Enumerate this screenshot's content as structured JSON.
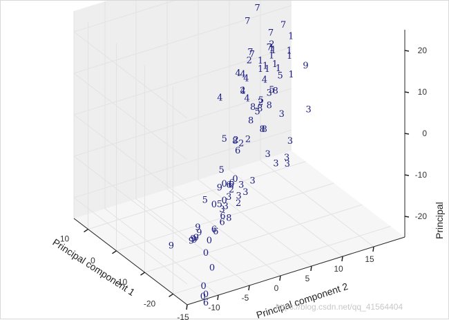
{
  "chart_data": {
    "type": "scatter",
    "projection": "3d",
    "marker": "digit-text",
    "grid": true,
    "xlabel": "Principal component 1",
    "ylabel": "Principal component 2",
    "zlabel": "Principal",
    "xticks": [
      "-20",
      "-10",
      "0",
      "10"
    ],
    "yticks": [
      "-15",
      "-10",
      "-5",
      "0",
      "5",
      "10",
      "15"
    ],
    "zticks": [
      "20",
      "10",
      "0",
      "-10",
      "-20"
    ],
    "xlim": [
      -25,
      15
    ],
    "ylim": [
      -15,
      20
    ],
    "zlim": [
      -25,
      25
    ],
    "colors": {
      "digits": "#1a1a80",
      "pane": "#f2f2f2",
      "grid": "#e2e2e2"
    },
    "points": [
      {
        "label": "7",
        "x": 8.5,
        "y": 15.5,
        "z": 22
      },
      {
        "label": "7",
        "x": 4,
        "y": 9.5,
        "z": 20
      },
      {
        "label": "7",
        "x": 7.5,
        "y": 15.5,
        "z": 18
      },
      {
        "label": "7",
        "x": 2,
        "y": 7,
        "z": 19
      },
      {
        "label": "7",
        "x": 8,
        "y": 13.5,
        "z": 10
      },
      {
        "label": "7",
        "x": 8,
        "y": 15.5,
        "z": 11
      },
      {
        "label": "7",
        "x": 2,
        "y": 10.5,
        "z": 11
      },
      {
        "label": "7",
        "x": 1,
        "y": 7,
        "z": 12
      },
      {
        "label": "7",
        "x": 1.5,
        "y": 7.5,
        "z": 11
      },
      {
        "label": "4",
        "x": -21,
        "y": -5,
        "z": 24
      },
      {
        "label": "4",
        "x": -20.5,
        "y": -4,
        "z": 23
      },
      {
        "label": "4",
        "x": -19.5,
        "y": -3,
        "z": 21
      },
      {
        "label": "4",
        "x": -24.5,
        "y": -9.5,
        "z": 22
      },
      {
        "label": "4",
        "x": -22,
        "y": -4,
        "z": 18
      },
      {
        "label": "4",
        "x": -20.5,
        "y": -4,
        "z": 19
      },
      {
        "label": "4",
        "x": -15,
        "y": 2,
        "z": 16
      },
      {
        "label": "1",
        "x": 7.5,
        "y": 16.5,
        "z": 8
      },
      {
        "label": "1",
        "x": 7,
        "y": 16,
        "z": 5
      },
      {
        "label": "1",
        "x": 4.5,
        "y": 12,
        "z": 7
      },
      {
        "label": "1",
        "x": 5.5,
        "y": 12.5,
        "z": 8
      },
      {
        "label": "1",
        "x": 6,
        "y": 13,
        "z": 7
      },
      {
        "label": "1",
        "x": 4,
        "y": 10,
        "z": 5
      },
      {
        "label": "1",
        "x": 4.5,
        "y": 11,
        "z": 5
      },
      {
        "label": "1",
        "x": 5.5,
        "y": 13,
        "z": 4
      },
      {
        "label": "1",
        "x": 8,
        "y": 16.5,
        "z": 3
      },
      {
        "label": "1",
        "x": 6.5,
        "y": 14,
        "z": 2
      },
      {
        "label": "1",
        "x": 6,
        "y": 12,
        "z": 3
      },
      {
        "label": "1",
        "x": 8.5,
        "y": 17,
        "z": -2
      },
      {
        "label": "1",
        "x": 4,
        "y": 10,
        "z": 7
      },
      {
        "label": "2",
        "x": 5.5,
        "y": 12.5,
        "z": 9
      },
      {
        "label": "2",
        "x": 2.5,
        "y": 7.5,
        "z": 9
      },
      {
        "label": "2",
        "x": 1.5,
        "y": 6,
        "z": 3
      },
      {
        "label": "2",
        "x": 4,
        "y": 10,
        "z": -3
      },
      {
        "label": "2",
        "x": 2,
        "y": 6,
        "z": -10
      },
      {
        "label": "2",
        "x": -0.5,
        "y": 4,
        "z": -7
      },
      {
        "label": "2",
        "x": 3,
        "y": 6,
        "z": -25
      },
      {
        "label": "2",
        "x": 0,
        "y": 3.5,
        "z": -19
      },
      {
        "label": "2",
        "x": 9.5,
        "y": 10.5,
        "z": -15
      },
      {
        "label": "8",
        "x": 2,
        "y": 9,
        "z": -3
      },
      {
        "label": "8",
        "x": 4.5,
        "y": 9,
        "z": -4
      },
      {
        "label": "8",
        "x": 3,
        "y": 8,
        "z": -6
      },
      {
        "label": "8",
        "x": 4.5,
        "y": 10.5,
        "z": -10
      },
      {
        "label": "8",
        "x": 7,
        "y": 12,
        "z": -12
      },
      {
        "label": "8",
        "x": 7.5,
        "y": 13,
        "z": -7
      },
      {
        "label": "8",
        "x": 2,
        "y": 5,
        "z": -9
      },
      {
        "label": "8",
        "x": -9,
        "y": -1,
        "z": -19
      },
      {
        "label": "8",
        "x": 7.5,
        "y": 14,
        "z": -4
      },
      {
        "label": "5",
        "x": -3,
        "y": 1,
        "z": -4
      },
      {
        "label": "5",
        "x": 4,
        "y": 9.5,
        "z": -5
      },
      {
        "label": "5",
        "x": 6,
        "y": 11,
        "z": -4
      },
      {
        "label": "5",
        "x": 5.5,
        "y": 12.5,
        "z": -2
      },
      {
        "label": "5",
        "x": 8,
        "y": 15,
        "z": -1
      },
      {
        "label": "5",
        "x": -2,
        "y": 1,
        "z": -12
      },
      {
        "label": "5",
        "x": -9,
        "y": -2.5,
        "z": -15
      },
      {
        "label": "5",
        "x": -22.5,
        "y": -11,
        "z": -3
      },
      {
        "label": "3",
        "x": 7.5,
        "y": 13,
        "z": -4
      },
      {
        "label": "3",
        "x": 7.5,
        "y": 15,
        "z": -10
      },
      {
        "label": "3",
        "x": 9,
        "y": 20,
        "z": -12
      },
      {
        "label": "3",
        "x": 10,
        "y": 17.5,
        "z": -19
      },
      {
        "label": "3",
        "x": 8,
        "y": 13,
        "z": -19
      },
      {
        "label": "3",
        "x": 9,
        "y": 16.5,
        "z": -22
      },
      {
        "label": "3",
        "x": 9.5,
        "y": 15,
        "z": -23
      },
      {
        "label": "3",
        "x": 11,
        "y": 17.5,
        "z": -25
      },
      {
        "label": "3",
        "x": 2,
        "y": 6,
        "z": -20
      },
      {
        "label": "3",
        "x": 2,
        "y": 4,
        "z": -22
      },
      {
        "label": "3",
        "x": 0,
        "y": 2,
        "z": -23
      },
      {
        "label": "3",
        "x": 2,
        "y": 3.5,
        "z": -24
      },
      {
        "label": "3",
        "x": 4,
        "y": 6.5,
        "z": -24
      },
      {
        "label": "3",
        "x": 6,
        "y": 8.5,
        "z": -25
      },
      {
        "label": "3",
        "x": 9,
        "y": 11,
        "z": -25
      },
      {
        "label": "9",
        "x": 10,
        "y": 20,
        "z": -2
      },
      {
        "label": "9",
        "x": -9,
        "y": -2.5,
        "z": -11
      },
      {
        "label": "9",
        "x": -3.5,
        "y": -3.5,
        "z": -23
      },
      {
        "label": "9",
        "x": -4,
        "y": -3.5,
        "z": -24
      },
      {
        "label": "9",
        "x": -4,
        "y": -4,
        "z": -25
      },
      {
        "label": "9",
        "x": -4.5,
        "y": -4.5,
        "z": -25
      },
      {
        "label": "9",
        "x": -4.5,
        "y": -5,
        "z": -25
      },
      {
        "label": "9",
        "x": -4,
        "y": -4.5,
        "z": -25
      },
      {
        "label": "9",
        "x": -4,
        "y": -8,
        "z": -25
      },
      {
        "label": "6",
        "x": -20,
        "y": -6,
        "z": -3
      },
      {
        "label": "6",
        "x": -23.5,
        "y": -10,
        "z": -10
      },
      {
        "label": "6",
        "x": -23,
        "y": -9.5,
        "z": -11
      },
      {
        "label": "6",
        "x": -22,
        "y": -8,
        "z": -10
      },
      {
        "label": "6",
        "x": -20,
        "y": -7,
        "z": -10
      },
      {
        "label": "6",
        "x": -12,
        "y": -2,
        "z": -9
      },
      {
        "label": "6",
        "x": -10,
        "y": -1,
        "z": -10
      },
      {
        "label": "6",
        "x": -11,
        "y": -0.5,
        "z": -2
      },
      {
        "label": "6",
        "x": -25,
        "y": -12,
        "z": -26
      },
      {
        "label": "0",
        "x": -20.5,
        "y": -7,
        "z": -2
      },
      {
        "label": "0",
        "x": -20,
        "y": -5,
        "z": -2
      },
      {
        "label": "0",
        "x": -23.5,
        "y": -10,
        "z": -4
      },
      {
        "label": "0",
        "x": -20.5,
        "y": -7,
        "z": -6
      },
      {
        "label": "0",
        "x": -25,
        "y": -12,
        "z": -14
      },
      {
        "label": "0",
        "x": -25,
        "y": -11,
        "z": -18
      },
      {
        "label": "0",
        "x": -25,
        "y": -12,
        "z": -24
      },
      {
        "label": "0",
        "x": -24,
        "y": -12,
        "z": -25
      },
      {
        "label": "0",
        "x": -22,
        "y": -11,
        "z": -24
      },
      {
        "label": "0",
        "x": -24,
        "y": -11,
        "z": -12
      }
    ]
  },
  "watermark": "https://blog.csdn.net/qq_41564404"
}
